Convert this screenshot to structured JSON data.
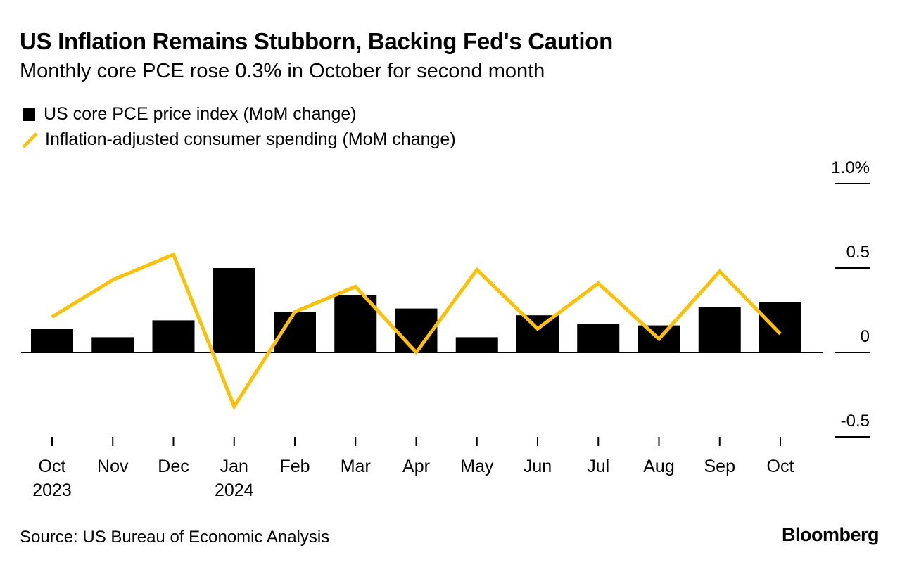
{
  "colors": {
    "bar": "#000000",
    "line": "#FFC000",
    "axis": "#000000",
    "text": "#000000",
    "background": "#FFFFFF"
  },
  "header": {
    "title": "US Inflation Remains Stubborn, Backing Fed's Caution",
    "subtitle": "Monthly core PCE rose 0.3% in October for second month"
  },
  "footer": {
    "source": "Source: US Bureau of Economic Analysis",
    "brand": "Bloomberg"
  },
  "chart_data": {
    "type": "bar",
    "categories": [
      "Oct",
      "Nov",
      "Dec",
      "Jan",
      "Feb",
      "Mar",
      "Apr",
      "May",
      "Jun",
      "Jul",
      "Aug",
      "Sep",
      "Oct"
    ],
    "year_labels": [
      "2023",
      "",
      "",
      "2024",
      "",
      "",
      "",
      "",
      "",
      "",
      "",
      "",
      ""
    ],
    "series": [
      {
        "name": "US core PCE price index (MoM change)",
        "type": "bar",
        "values": [
          0.14,
          0.09,
          0.19,
          0.5,
          0.24,
          0.34,
          0.26,
          0.09,
          0.22,
          0.17,
          0.16,
          0.27,
          0.3
        ]
      },
      {
        "name": "Inflation-adjusted consumer spending (MoM change)",
        "type": "line",
        "values": [
          0.21,
          0.43,
          0.58,
          -0.32,
          0.24,
          0.39,
          0.0,
          0.49,
          0.14,
          0.41,
          0.08,
          0.48,
          0.11
        ]
      }
    ],
    "y_ticks": [
      {
        "value": 1.0,
        "label": "1.0%"
      },
      {
        "value": 0.5,
        "label": "0.5"
      },
      {
        "value": 0.0,
        "label": "0"
      },
      {
        "value": -0.5,
        "label": "-0.5"
      }
    ],
    "ylim": [
      -0.5,
      1.0
    ],
    "title": "US Inflation Remains Stubborn, Backing Fed's Caution",
    "subtitle": "Monthly core PCE rose 0.3% in October for second month",
    "xlabel": "",
    "ylabel": "",
    "grid": false,
    "legend_position": "top-left"
  }
}
